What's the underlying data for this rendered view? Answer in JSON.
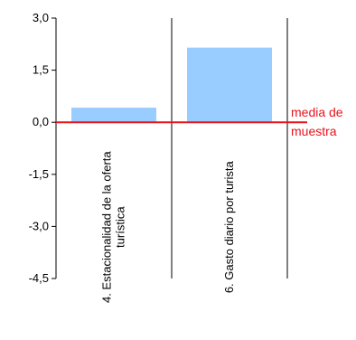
{
  "chart_data": {
    "type": "bar",
    "categories": [
      [
        "4. Estacionalidad de la oferta",
        "turística"
      ],
      [
        "6. Gasto diario por turista"
      ]
    ],
    "values": [
      0.42,
      2.15
    ],
    "ylim": [
      -4.5,
      3.0
    ],
    "yticks": [
      "3,0",
      "1,5",
      "0,0",
      "-1,5",
      "-3,0",
      "-4,5"
    ],
    "reference_line": {
      "value": 0.0,
      "label": [
        "media de",
        "muestra"
      ],
      "color": "#e8141c"
    },
    "bar_color": "#99ccff",
    "grid": false,
    "legend": "none"
  }
}
